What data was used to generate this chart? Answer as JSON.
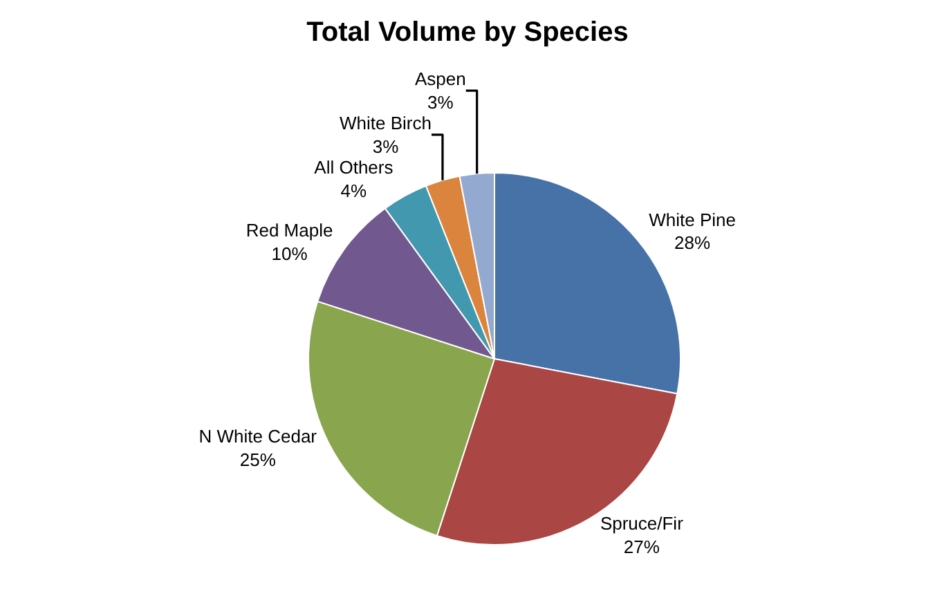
{
  "chart_data": {
    "type": "pie",
    "title": "Total Volume by Species",
    "categories": [
      "White Pine",
      "Spruce/Fir",
      "N White Cedar",
      "Red Maple",
      "All Others",
      "White Birch",
      "Aspen"
    ],
    "values": [
      28,
      27,
      25,
      10,
      4,
      3,
      3
    ],
    "value_labels": [
      "28%",
      "27%",
      "25%",
      "10%",
      "4%",
      "3%",
      "3%"
    ],
    "colors": [
      "#4672a8",
      "#aa4644",
      "#89a54e",
      "#71588f",
      "#4198af",
      "#db843d",
      "#93a9cf"
    ],
    "legend": false
  }
}
